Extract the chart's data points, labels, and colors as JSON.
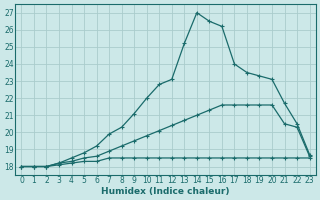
{
  "xlabel": "Humidex (Indice chaleur)",
  "background_color": "#cce8e8",
  "grid_color": "#aacccc",
  "line_color": "#1a6b6b",
  "xlim": [
    -0.5,
    23.5
  ],
  "ylim": [
    17.5,
    27.5
  ],
  "xticks": [
    0,
    1,
    2,
    3,
    4,
    5,
    6,
    7,
    8,
    9,
    10,
    11,
    12,
    13,
    14,
    15,
    16,
    17,
    18,
    19,
    20,
    21,
    22,
    23
  ],
  "yticks": [
    18,
    19,
    20,
    21,
    22,
    23,
    24,
    25,
    26,
    27
  ],
  "series1_x": [
    0,
    1,
    2,
    3,
    4,
    5,
    6,
    7,
    8,
    9,
    10,
    11,
    12,
    13,
    14,
    15,
    16,
    17,
    18,
    19,
    20,
    21,
    22,
    23
  ],
  "series1_y": [
    18,
    18,
    18,
    18.1,
    18.2,
    18.3,
    18.3,
    18.5,
    18.5,
    18.5,
    18.5,
    18.5,
    18.5,
    18.5,
    18.5,
    18.5,
    18.5,
    18.5,
    18.5,
    18.5,
    18.5,
    18.5,
    18.5,
    18.5
  ],
  "series2_x": [
    0,
    1,
    2,
    3,
    4,
    5,
    6,
    7,
    8,
    9,
    10,
    11,
    12,
    13,
    14,
    15,
    16,
    17,
    18,
    19,
    20,
    21,
    22,
    23
  ],
  "series2_y": [
    18,
    18,
    18,
    18.2,
    18.3,
    18.5,
    18.6,
    18.9,
    19.2,
    19.5,
    19.8,
    20.1,
    20.4,
    20.7,
    21.0,
    21.3,
    21.6,
    21.6,
    21.6,
    21.6,
    21.6,
    20.5,
    20.3,
    18.6
  ],
  "series3_x": [
    0,
    1,
    2,
    3,
    4,
    5,
    6,
    7,
    8,
    9,
    10,
    11,
    12,
    13,
    14,
    15,
    16,
    17,
    18,
    19,
    20,
    21,
    22,
    23
  ],
  "series3_y": [
    18,
    18,
    18,
    18.2,
    18.5,
    18.8,
    19.2,
    19.9,
    20.3,
    21.1,
    22.0,
    22.8,
    23.1,
    25.2,
    27.0,
    26.5,
    26.2,
    24.0,
    23.5,
    23.3,
    23.1,
    21.7,
    20.5,
    18.7
  ]
}
